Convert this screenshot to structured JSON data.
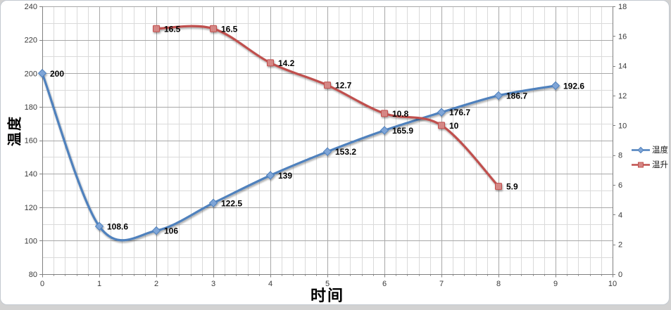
{
  "chart_data": {
    "type": "line",
    "smooth_lines": true,
    "title": "",
    "x_axis": {
      "title": "时间",
      "min": 0,
      "max": 10,
      "major_step": 1,
      "minor_step": 0.2,
      "tick_labels": [
        "0",
        "1",
        "2",
        "3",
        "4",
        "5",
        "6",
        "7",
        "8",
        "9",
        "10"
      ]
    },
    "y_left": {
      "title": "温度",
      "min": 80,
      "max": 240,
      "major_step": 20,
      "minor_step": 10,
      "tick_labels": [
        "80",
        "100",
        "120",
        "140",
        "160",
        "180",
        "200",
        "220",
        "240"
      ]
    },
    "y_right": {
      "title": "",
      "min": 0,
      "max": 18,
      "major_step": 2,
      "tick_labels": [
        "0",
        "2",
        "4",
        "6",
        "8",
        "10",
        "12",
        "14",
        "16",
        "18"
      ]
    },
    "grid": {
      "major": true,
      "minor": true
    },
    "legend": {
      "position": "right",
      "entries": [
        "温度",
        "温升"
      ]
    },
    "data_labels": true,
    "series": [
      {
        "name": "温度",
        "axis": "left",
        "marker": "diamond",
        "line_color": "#4f81bd",
        "marker_fill": "#7fa5d7",
        "x": [
          0,
          1,
          2,
          3,
          4,
          5,
          6,
          7,
          8,
          9
        ],
        "values": [
          200,
          108.6,
          106,
          122.5,
          139,
          153.2,
          165.9,
          176.7,
          186.7,
          192.6
        ],
        "labels": [
          "200",
          "108.6",
          "106",
          "122.5",
          "139",
          "153.2",
          "165.9",
          "176.7",
          "186.7",
          "192.6"
        ]
      },
      {
        "name": "温升",
        "axis": "right",
        "marker": "square",
        "line_color": "#c0504d",
        "marker_fill": "#d58785",
        "x": [
          2,
          3,
          4,
          5,
          6,
          7,
          8
        ],
        "values": [
          16.5,
          16.5,
          14.2,
          12.7,
          10.8,
          10,
          5.9
        ],
        "labels": [
          "16.5",
          "16.5",
          "14.2",
          "12.7",
          "10.8",
          "10",
          "5.9"
        ]
      }
    ]
  }
}
